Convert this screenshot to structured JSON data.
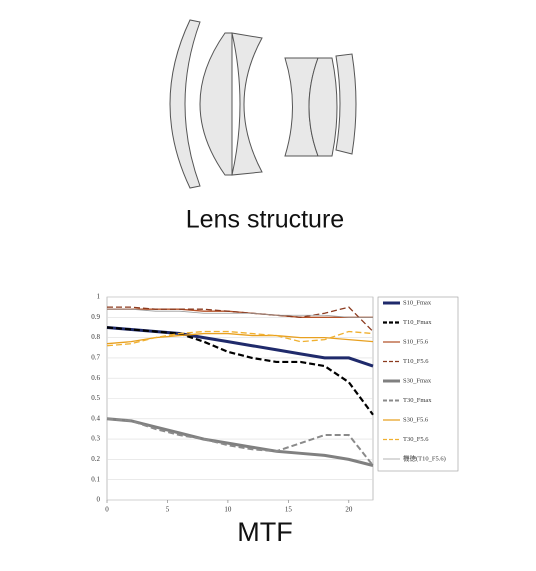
{
  "caption": "Lens structure",
  "chart_data": {
    "type": "line",
    "title": "MTF",
    "x": [
      0,
      2,
      4,
      6,
      8,
      10,
      12,
      14,
      16,
      18,
      20,
      22
    ],
    "xlim": [
      0,
      22
    ],
    "xticks": [
      0,
      5,
      10,
      15,
      20
    ],
    "ylim": [
      0,
      1
    ],
    "yticks": [
      0,
      0.1,
      0.2,
      0.3,
      0.4,
      0.5,
      0.6,
      0.7,
      0.8,
      0.9,
      1
    ],
    "grid": true,
    "series": [
      {
        "name": "S10_Fmax",
        "color": "#1f2a6b",
        "width": 3,
        "dash": false,
        "values": [
          0.85,
          0.84,
          0.83,
          0.82,
          0.8,
          0.78,
          0.76,
          0.74,
          0.72,
          0.7,
          0.7,
          0.66
        ]
      },
      {
        "name": "T10_Fmax",
        "color": "#000000",
        "width": 2.2,
        "dash": true,
        "values": [
          0.85,
          0.84,
          0.83,
          0.82,
          0.78,
          0.73,
          0.7,
          0.68,
          0.68,
          0.66,
          0.58,
          0.42
        ]
      },
      {
        "name": "S10_F5.6",
        "color": "#b5532a",
        "width": 1.3,
        "dash": false,
        "values": [
          0.94,
          0.94,
          0.94,
          0.94,
          0.93,
          0.93,
          0.92,
          0.91,
          0.9,
          0.9,
          0.9,
          0.9
        ]
      },
      {
        "name": "T10_F5.6",
        "color": "#8b3a1e",
        "width": 1.3,
        "dash": true,
        "values": [
          0.95,
          0.95,
          0.94,
          0.94,
          0.94,
          0.93,
          0.92,
          0.91,
          0.9,
          0.92,
          0.95,
          0.83
        ]
      },
      {
        "name": "S30_Fmax",
        "color": "#808080",
        "width": 3,
        "dash": false,
        "values": [
          0.4,
          0.39,
          0.36,
          0.33,
          0.3,
          0.28,
          0.26,
          0.24,
          0.23,
          0.22,
          0.2,
          0.17
        ]
      },
      {
        "name": "T30_Fmax",
        "color": "#8a8a8a",
        "width": 2,
        "dash": true,
        "values": [
          0.4,
          0.39,
          0.35,
          0.32,
          0.3,
          0.27,
          0.25,
          0.24,
          0.28,
          0.32,
          0.32,
          0.17
        ]
      },
      {
        "name": "S30_F5.6",
        "color": "#e8a020",
        "width": 1.3,
        "dash": false,
        "values": [
          0.77,
          0.78,
          0.8,
          0.81,
          0.82,
          0.82,
          0.81,
          0.81,
          0.8,
          0.8,
          0.79,
          0.78
        ]
      },
      {
        "name": "T30_F5.6",
        "color": "#f0b030",
        "width": 1.3,
        "dash": true,
        "values": [
          0.76,
          0.77,
          0.8,
          0.82,
          0.83,
          0.83,
          0.82,
          0.81,
          0.78,
          0.79,
          0.83,
          0.82
        ]
      },
      {
        "name": "機徳(T10_F5.6)",
        "color": "#9a9a9a",
        "width": 0.8,
        "dash": false,
        "values": [
          0.94,
          0.94,
          0.93,
          0.93,
          0.92,
          0.92,
          0.92,
          0.91,
          0.91,
          0.91,
          0.9,
          0.9
        ]
      }
    ]
  }
}
